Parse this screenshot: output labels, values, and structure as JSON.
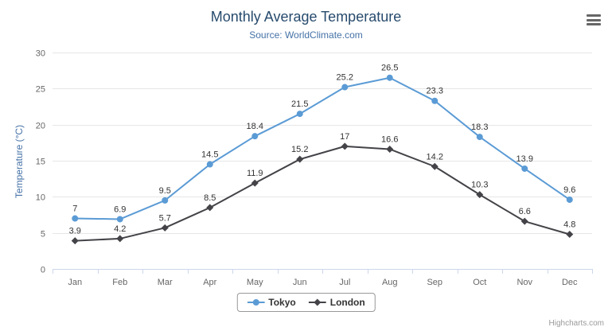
{
  "credits": "Highcharts.com",
  "export_menu_icon": "hamburger-icon",
  "chart_data": {
    "type": "line",
    "title": "Monthly Average Temperature",
    "subtitle": "Source: WorldClimate.com",
    "categories": [
      "Jan",
      "Feb",
      "Mar",
      "Apr",
      "May",
      "Jun",
      "Jul",
      "Aug",
      "Sep",
      "Oct",
      "Nov",
      "Dec"
    ],
    "series": [
      {
        "name": "Tokyo",
        "color": "#5b9bd5",
        "marker": "circle",
        "values": [
          7,
          6.9,
          9.5,
          14.5,
          18.4,
          21.5,
          25.2,
          26.5,
          23.3,
          18.3,
          13.9,
          9.6
        ]
      },
      {
        "name": "London",
        "color": "#434348",
        "marker": "diamond",
        "values": [
          3.9,
          4.2,
          5.7,
          8.5,
          11.9,
          15.2,
          17,
          16.6,
          14.2,
          10.3,
          6.6,
          4.8
        ]
      }
    ],
    "xlabel": "",
    "ylabel": "Temperature (°C)",
    "ylim": [
      0,
      30
    ],
    "ytick": 5,
    "grid": true,
    "grid_color": "#e6e6e6",
    "axis_line_color": "#ccd6eb",
    "tick_label_color": "#666666",
    "data_label_color": "#333333",
    "legend_position": "bottom"
  }
}
